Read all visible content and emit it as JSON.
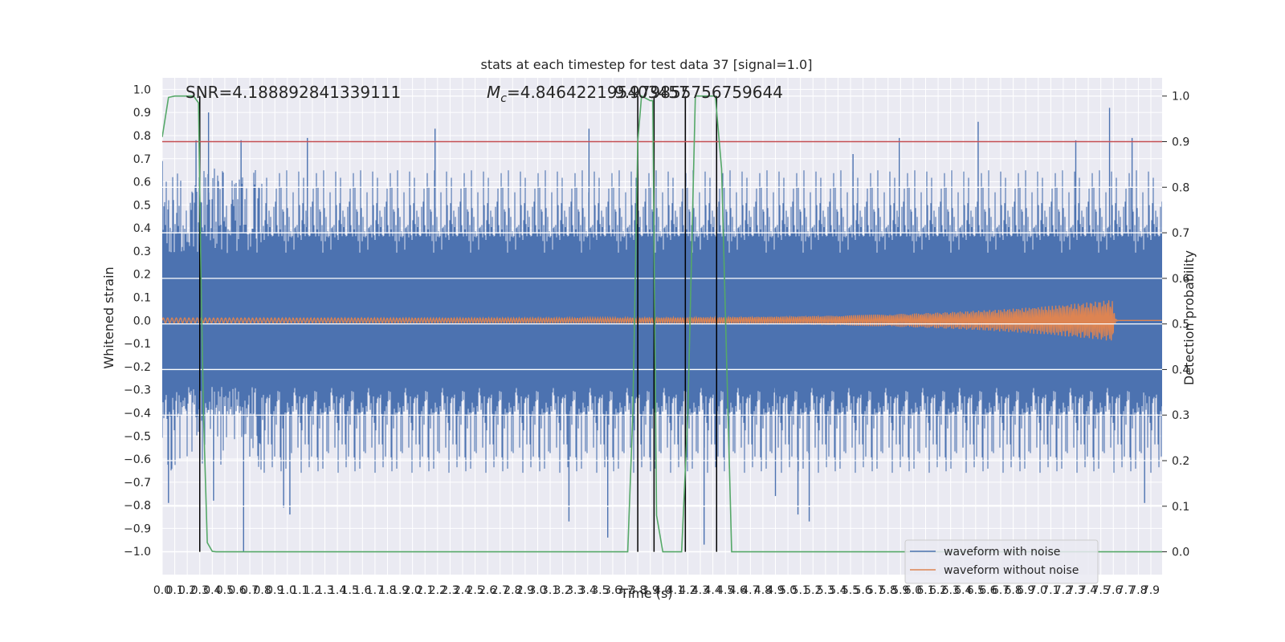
{
  "chart_data": {
    "type": "line",
    "title": "stats at each timestep for test data 37 [signal=1.0]",
    "xlabel": "Time (s)",
    "ylabel": "Whitened strain",
    "y2label": "Detection probability",
    "xlim": [
      0.0,
      7.99
    ],
    "ylim": [
      -1.1,
      1.05
    ],
    "y2lim": [
      -0.05,
      1.04
    ],
    "x_ticks": [
      "0.0",
      "0.1",
      "0.2",
      "0.3",
      "0.4",
      "0.5",
      "0.6",
      "0.7",
      "0.8",
      "0.9",
      "1.0",
      "1.1",
      "1.2",
      "1.3",
      "1.4",
      "1.5",
      "1.6",
      "1.7",
      "1.8",
      "1.9",
      "2.0",
      "2.1",
      "2.2",
      "2.3",
      "2.4",
      "2.5",
      "2.6",
      "2.7",
      "2.8",
      "2.9",
      "3.0",
      "3.1",
      "3.2",
      "3.3",
      "3.4",
      "3.5",
      "3.6",
      "3.7",
      "3.8",
      "3.9",
      "4.0",
      "4.1",
      "4.2",
      "4.3",
      "4.4",
      "4.5",
      "4.6",
      "4.7",
      "4.8",
      "4.9",
      "5.0",
      "5.1",
      "5.2",
      "5.3",
      "5.4",
      "5.5",
      "5.6",
      "5.7",
      "5.8",
      "5.9",
      "6.0",
      "6.1",
      "6.2",
      "6.3",
      "6.4",
      "6.5",
      "6.6",
      "6.7",
      "6.8",
      "6.9",
      "7.0",
      "7.1",
      "7.2",
      "7.3",
      "7.4",
      "7.5",
      "7.6",
      "7.7",
      "7.8",
      "7.9"
    ],
    "y_ticks": [
      "1.0",
      "0.9",
      "0.8",
      "0.7",
      "0.6",
      "0.5",
      "0.4",
      "0.3",
      "0.2",
      "0.1",
      "0.0",
      "−0.1",
      "−0.2",
      "−0.3",
      "−0.4",
      "−0.5",
      "−0.6",
      "−0.7",
      "−0.8",
      "−0.9",
      "−1.0"
    ],
    "y2_ticks": [
      "1.0",
      "0.9",
      "0.8",
      "0.7",
      "0.6",
      "0.5",
      "0.4",
      "0.3",
      "0.2",
      "0.1",
      "0.0"
    ],
    "annotations": {
      "snr": "SNR=4.188892841339111",
      "mc_symbol": "M",
      "mc_sub": "c",
      "mc_value": "=4.846422195403457",
      "mc_overlap": "9.979855756759644"
    },
    "threshold": {
      "value": 0.9,
      "axis": "y2"
    },
    "detection_markers_x": [
      0.3,
      3.8,
      3.93,
      4.18,
      4.43
    ],
    "series": [
      {
        "name": "waveform with noise",
        "kind": "noise",
        "color": "#4c72b0",
        "band": 0.38,
        "peaks": [
          [
            0.0,
            0.69
          ],
          [
            0.05,
            -0.79
          ],
          [
            0.27,
            0.78
          ],
          [
            0.37,
            0.9
          ],
          [
            0.41,
            -0.78
          ],
          [
            0.63,
            0.78
          ],
          [
            0.65,
            -1.0
          ],
          [
            0.97,
            -0.81
          ],
          [
            1.02,
            -0.84
          ],
          [
            1.16,
            0.79
          ],
          [
            2.18,
            0.83
          ],
          [
            3.25,
            -0.87
          ],
          [
            3.41,
            0.83
          ],
          [
            3.56,
            -0.94
          ],
          [
            4.33,
            -0.97
          ],
          [
            4.9,
            -0.76
          ],
          [
            5.08,
            -0.84
          ],
          [
            5.17,
            -0.87
          ],
          [
            5.52,
            0.72
          ],
          [
            5.89,
            0.79
          ],
          [
            6.52,
            0.86
          ],
          [
            7.3,
            0.78
          ],
          [
            7.57,
            0.92
          ],
          [
            7.75,
            0.79
          ],
          [
            7.85,
            -0.79
          ]
        ],
        "axis": "y"
      },
      {
        "name": "waveform without noise",
        "kind": "chirp",
        "color": "#dd8452",
        "start_amp": 0.011,
        "peak_amp": 0.09,
        "t_merger": 7.6,
        "axis": "y"
      },
      {
        "name": "",
        "kind": "line",
        "color": "#55a868",
        "axis": "y2",
        "x": [
          0.0,
          0.05,
          0.1,
          0.2,
          0.25,
          0.29,
          0.31,
          0.33,
          0.36,
          0.4,
          0.43,
          0.5,
          0.7,
          1.0,
          2.0,
          3.0,
          3.5,
          3.72,
          3.76,
          3.8,
          3.83,
          3.9,
          3.92,
          3.95,
          4.0,
          4.03,
          4.1,
          4.15,
          4.2,
          4.26,
          4.3,
          4.35,
          4.42,
          4.47,
          4.55,
          4.6,
          5.0,
          6.0,
          7.0,
          7.99
        ],
        "y": [
          0.91,
          0.997,
          1.0,
          1.0,
          1.0,
          0.985,
          0.6,
          0.3,
          0.02,
          0.001,
          0.0,
          0.0,
          0.0,
          0.0,
          0.0,
          0.0,
          0.0,
          0.0,
          0.3,
          0.9,
          1.0,
          0.99,
          0.99,
          0.08,
          0.0,
          0.0,
          0.0,
          0.0,
          0.3,
          1.0,
          1.0,
          1.0,
          1.0,
          0.84,
          0.0,
          0.0,
          0.0,
          0.0,
          0.0,
          0.0
        ]
      }
    ],
    "legend": {
      "placement": "lower right",
      "entries": [
        "waveform with noise",
        "waveform without noise"
      ]
    },
    "grid": true
  }
}
